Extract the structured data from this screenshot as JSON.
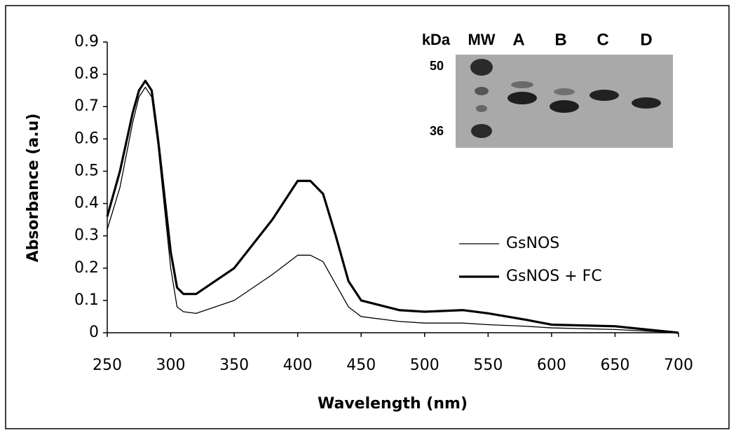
{
  "chart_data": {
    "type": "line",
    "x_label": "Wavelength (nm)",
    "y_label": "Absorbance (a.u)",
    "xlim": [
      250,
      700
    ],
    "xticks": [
      250,
      300,
      350,
      400,
      450,
      500,
      550,
      600,
      650,
      700
    ],
    "ylim": [
      0,
      0.9
    ],
    "yticks": [
      0,
      0.1,
      0.2,
      0.3,
      0.4,
      0.5,
      0.6,
      0.7,
      0.8,
      0.9
    ],
    "legend": "right",
    "series": [
      {
        "name": "GsNOS",
        "color": "#000000",
        "x": [
          250,
          260,
          270,
          275,
          280,
          285,
          290,
          300,
          305,
          310,
          320,
          350,
          380,
          400,
          410,
          420,
          430,
          440,
          450,
          480,
          500,
          530,
          550,
          580,
          600,
          650,
          700
        ],
        "values": [
          0.32,
          0.45,
          0.65,
          0.73,
          0.76,
          0.73,
          0.58,
          0.2,
          0.08,
          0.065,
          0.06,
          0.1,
          0.18,
          0.24,
          0.24,
          0.22,
          0.15,
          0.08,
          0.05,
          0.035,
          0.03,
          0.03,
          0.025,
          0.02,
          0.015,
          0.01,
          0
        ]
      },
      {
        "name": "GsNOS + FC",
        "color": "#000000",
        "x": [
          250,
          260,
          270,
          275,
          280,
          285,
          290,
          300,
          305,
          310,
          320,
          350,
          380,
          400,
          410,
          420,
          430,
          440,
          450,
          480,
          500,
          530,
          550,
          580,
          600,
          650,
          700
        ],
        "values": [
          0.36,
          0.5,
          0.68,
          0.75,
          0.78,
          0.75,
          0.6,
          0.25,
          0.14,
          0.12,
          0.12,
          0.2,
          0.35,
          0.47,
          0.47,
          0.43,
          0.3,
          0.16,
          0.1,
          0.07,
          0.065,
          0.07,
          0.06,
          0.04,
          0.025,
          0.02,
          0
        ]
      }
    ],
    "inset": {
      "lanes": [
        "kDa",
        "MW",
        "A",
        "B",
        "C",
        "D"
      ],
      "markers": [
        "50",
        "36"
      ]
    }
  }
}
